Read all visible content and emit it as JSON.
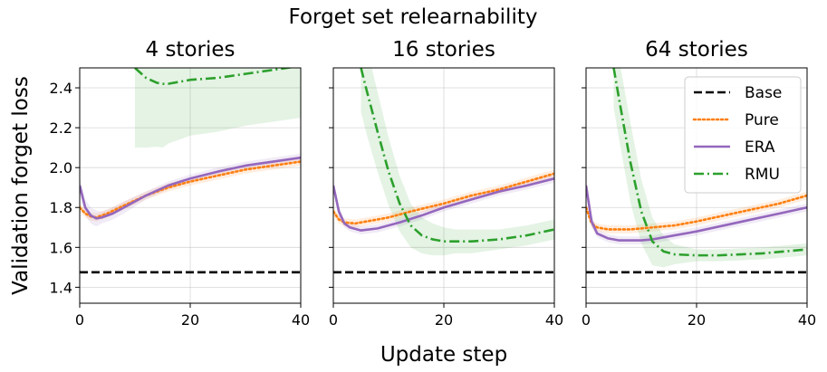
{
  "title": "Forget set relearnability",
  "xlabel": "Update step",
  "ylabel": "Validation forget loss",
  "colors": {
    "Base": "#000000",
    "Pure": "#ff7f0e",
    "ERA": "#9467bd",
    "RMU": "#2ca02c"
  },
  "legend": {
    "location": "top-right of third panel",
    "entries": [
      {
        "label": "Base",
        "style": "dashed"
      },
      {
        "label": "Pure",
        "style": "dotted"
      },
      {
        "label": "ERA",
        "style": "solid"
      },
      {
        "label": "RMU",
        "style": "dashdot"
      }
    ]
  },
  "chart_data": [
    {
      "type": "line",
      "title": "4 stories",
      "xlim": [
        0,
        40
      ],
      "ylim": [
        1.32,
        2.5
      ],
      "xticks": [
        0,
        20,
        40
      ],
      "yticks": [
        1.4,
        1.6,
        1.8,
        2.0,
        2.2,
        2.4
      ],
      "grid": true,
      "series": [
        {
          "name": "Base",
          "x": [
            0,
            40
          ],
          "y": [
            1.475,
            1.475
          ]
        },
        {
          "name": "Pure",
          "x": [
            0,
            1,
            2,
            3,
            5,
            8,
            12,
            16,
            20,
            25,
            30,
            35,
            40
          ],
          "y": [
            1.8,
            1.77,
            1.755,
            1.75,
            1.77,
            1.81,
            1.86,
            1.9,
            1.93,
            1.96,
            1.99,
            2.01,
            2.03
          ],
          "band": [
            0.02,
            0.02,
            0.02,
            0.02,
            0.02,
            0.02,
            0.02,
            0.02,
            0.02,
            0.02,
            0.02,
            0.02,
            0.02
          ]
        },
        {
          "name": "ERA",
          "x": [
            0,
            1,
            2,
            3,
            4,
            6,
            8,
            12,
            16,
            20,
            25,
            30,
            35,
            40
          ],
          "y": [
            1.91,
            1.8,
            1.76,
            1.745,
            1.75,
            1.77,
            1.8,
            1.86,
            1.91,
            1.945,
            1.98,
            2.01,
            2.03,
            2.05
          ],
          "band": [
            0.04,
            0.04,
            0.04,
            0.04,
            0.03,
            0.03,
            0.03,
            0.02,
            0.02,
            0.02,
            0.02,
            0.02,
            0.02,
            0.02
          ]
        },
        {
          "name": "RMU",
          "x": [
            10,
            12,
            14,
            15,
            16,
            18,
            20,
            25,
            30,
            35,
            40
          ],
          "y": [
            2.5,
            2.45,
            2.425,
            2.42,
            2.42,
            2.43,
            2.44,
            2.45,
            2.47,
            2.49,
            2.51
          ],
          "band": [
            0.4,
            0.35,
            0.32,
            0.32,
            0.3,
            0.29,
            0.28,
            0.27,
            0.26,
            0.26,
            0.26
          ]
        }
      ]
    },
    {
      "type": "line",
      "title": "16 stories",
      "xlim": [
        0,
        40
      ],
      "ylim": [
        1.32,
        2.5
      ],
      "xticks": [
        0,
        20,
        40
      ],
      "yticks": [
        1.4,
        1.6,
        1.8,
        2.0,
        2.2,
        2.4
      ],
      "grid": true,
      "series": [
        {
          "name": "Base",
          "x": [
            0,
            40
          ],
          "y": [
            1.475,
            1.475
          ]
        },
        {
          "name": "Pure",
          "x": [
            0,
            1,
            2,
            4,
            6,
            10,
            14,
            20,
            25,
            30,
            35,
            40
          ],
          "y": [
            1.78,
            1.74,
            1.725,
            1.72,
            1.73,
            1.75,
            1.78,
            1.82,
            1.86,
            1.89,
            1.93,
            1.97
          ],
          "band": [
            0.02,
            0.02,
            0.02,
            0.02,
            0.02,
            0.02,
            0.02,
            0.02,
            0.02,
            0.02,
            0.02,
            0.02
          ]
        },
        {
          "name": "ERA",
          "x": [
            0,
            1,
            2,
            3,
            5,
            8,
            12,
            16,
            20,
            25,
            30,
            35,
            40
          ],
          "y": [
            1.91,
            1.78,
            1.72,
            1.7,
            1.685,
            1.695,
            1.725,
            1.76,
            1.8,
            1.84,
            1.88,
            1.91,
            1.945
          ],
          "band": [
            0.03,
            0.03,
            0.02,
            0.02,
            0.02,
            0.02,
            0.02,
            0.02,
            0.02,
            0.02,
            0.02,
            0.02,
            0.02
          ]
        },
        {
          "name": "RMU",
          "x": [
            5,
            6,
            8,
            10,
            12,
            14,
            16,
            18,
            20,
            22,
            25,
            30,
            35,
            40
          ],
          "y": [
            2.5,
            2.39,
            2.18,
            1.98,
            1.82,
            1.71,
            1.66,
            1.64,
            1.63,
            1.63,
            1.63,
            1.64,
            1.66,
            1.69
          ],
          "band": [
            0.22,
            0.22,
            0.2,
            0.17,
            0.14,
            0.11,
            0.09,
            0.08,
            0.07,
            0.06,
            0.06,
            0.05,
            0.05,
            0.05
          ]
        }
      ]
    },
    {
      "type": "line",
      "title": "64 stories",
      "xlim": [
        0,
        40
      ],
      "ylim": [
        1.32,
        2.5
      ],
      "xticks": [
        0,
        20,
        40
      ],
      "yticks": [
        1.4,
        1.6,
        1.8,
        2.0,
        2.2,
        2.4
      ],
      "grid": true,
      "series": [
        {
          "name": "Base",
          "x": [
            0,
            40
          ],
          "y": [
            1.475,
            1.475
          ]
        },
        {
          "name": "Pure",
          "x": [
            0,
            1,
            2,
            4,
            8,
            12,
            16,
            20,
            25,
            30,
            35,
            40
          ],
          "y": [
            1.8,
            1.72,
            1.7,
            1.69,
            1.69,
            1.7,
            1.71,
            1.73,
            1.76,
            1.79,
            1.82,
            1.86
          ],
          "band": [
            0.02,
            0.02,
            0.02,
            0.02,
            0.02,
            0.02,
            0.02,
            0.02,
            0.02,
            0.02,
            0.02,
            0.02
          ]
        },
        {
          "name": "ERA",
          "x": [
            0,
            1,
            2,
            4,
            6,
            8,
            10,
            12,
            16,
            20,
            25,
            30,
            35,
            40
          ],
          "y": [
            1.91,
            1.73,
            1.67,
            1.645,
            1.635,
            1.635,
            1.635,
            1.64,
            1.66,
            1.68,
            1.71,
            1.74,
            1.77,
            1.8
          ],
          "band": [
            0.03,
            0.03,
            0.02,
            0.02,
            0.02,
            0.02,
            0.02,
            0.02,
            0.02,
            0.02,
            0.02,
            0.02,
            0.02,
            0.02
          ]
        },
        {
          "name": "RMU",
          "x": [
            5,
            6,
            8,
            10,
            12,
            14,
            16,
            20,
            24,
            28,
            32,
            36,
            40
          ],
          "y": [
            2.5,
            2.34,
            2.03,
            1.78,
            1.63,
            1.58,
            1.565,
            1.56,
            1.56,
            1.565,
            1.57,
            1.58,
            1.59
          ],
          "band": [
            0.2,
            0.2,
            0.2,
            0.16,
            0.12,
            0.08,
            0.05,
            0.03,
            0.03,
            0.03,
            0.03,
            0.03,
            0.03
          ]
        }
      ]
    }
  ]
}
